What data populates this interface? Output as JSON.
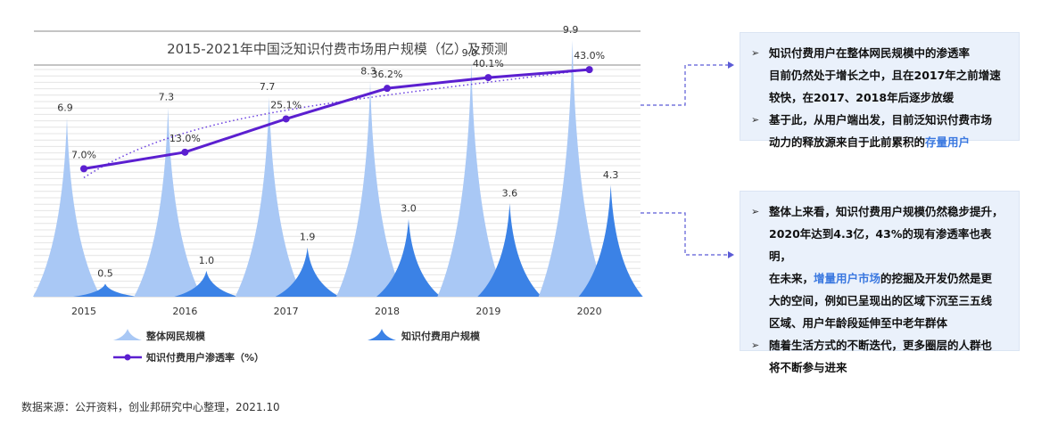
{
  "chart_data": {
    "type": "bar",
    "title": "2015-2021年中国泛知识付费市场用户规模（亿）及预测",
    "categories": [
      "2015",
      "2016",
      "2017",
      "2018",
      "2019",
      "2020"
    ],
    "series": [
      {
        "name": "整体网民规模",
        "type": "bar",
        "values": [
          6.9,
          7.3,
          7.7,
          8.3,
          9.0,
          9.9
        ],
        "labels": [
          "6.9",
          "7.3",
          "7.7",
          "8.3",
          "9.0",
          "9.9"
        ],
        "color": "#a9c8f5"
      },
      {
        "name": "知识付费用户规模",
        "type": "bar",
        "values": [
          0.5,
          1.0,
          1.9,
          3.0,
          3.6,
          4.3
        ],
        "labels": [
          "0.5",
          "1.0",
          "1.9",
          "3.0",
          "3.6",
          "4.3"
        ],
        "color": "#3b82e6"
      },
      {
        "name": "知识付费用户渗透率（%）",
        "type": "line",
        "values": [
          7.0,
          13.0,
          25.1,
          36.2,
          40.1,
          43.0
        ],
        "labels": [
          "7.0%",
          "13.0%",
          "25.1%",
          "36.2%",
          "40.1%",
          "43.0%"
        ],
        "color": "#5b1fd0"
      }
    ],
    "ylim_bars": [
      0,
      11
    ],
    "ylim_line": [
      0,
      100
    ],
    "grid": true,
    "trendline": "dotted"
  },
  "panels": {
    "top": {
      "items": [
        {
          "arrow": "➢",
          "text": [
            "知识付费用户在整体网民规模中的渗透率",
            "目前仍然处于增长之中，且在2017年之前增速",
            "较快，在2017、2018年后逐步放缓"
          ]
        },
        {
          "arrow": "➢",
          "text_before": "基于此，从用户端出发，目前泛知识付费市场",
          "text_line2_before": "动力的释放源来自于此前累积的",
          "highlight": "存量用户"
        }
      ]
    },
    "bottom": {
      "items": [
        {
          "arrow": "➢",
          "line1": "整体上来看，知识付费用户规模仍然稳步提升，",
          "line2": "2020年达到4.3亿，43%的现有渗透率也表明，",
          "line3_before": "在未来，",
          "highlight": "增量用户市场",
          "line3_after": "的挖掘及开发仍然是更",
          "line4": "大的空间，例如已呈现出的区域下沉至三五线",
          "line5": "区域、用户年龄段延伸至中老年群体"
        },
        {
          "arrow": "➢",
          "line1": "随着生活方式的不断迭代，更多圈层的人群也",
          "line2": "将不断参与进来"
        }
      ]
    }
  },
  "source": "数据来源：公开资料，创业邦研究中心整理，2021.10"
}
